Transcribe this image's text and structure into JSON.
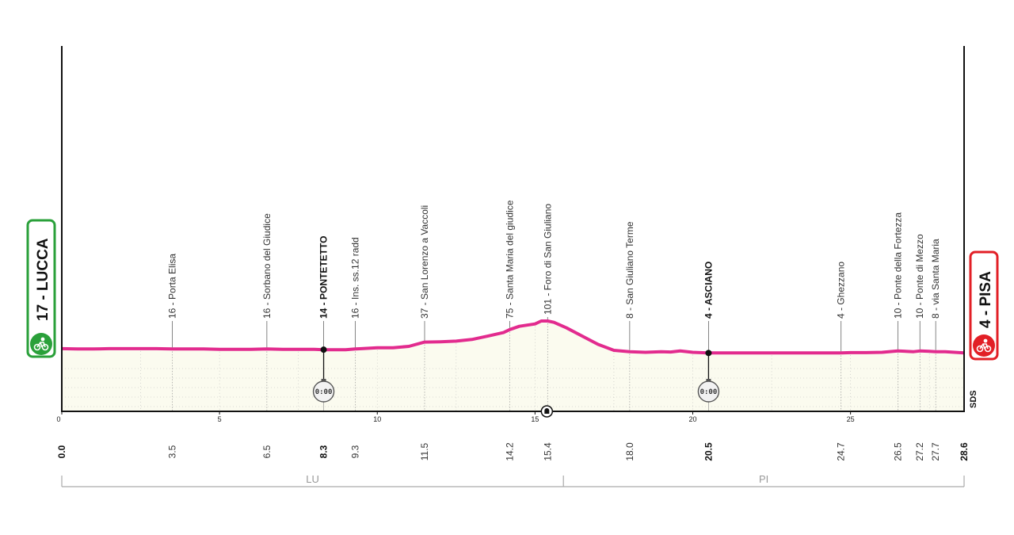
{
  "chart_data": {
    "type": "area",
    "total_km": 28.6,
    "x_ticks": [
      "0",
      "5",
      "10",
      "15",
      "20",
      "25"
    ],
    "start": {
      "label": "17 - LUCCA",
      "km_label": "0.0",
      "km": 0.0
    },
    "finish": {
      "label": "4 - PISA",
      "km_label": "28.6",
      "km": 28.6
    },
    "waypoints": [
      {
        "km": 3.5,
        "km_label": "3.5",
        "label": "16 - Porta Elisa",
        "bold": false
      },
      {
        "km": 6.5,
        "km_label": "6.5",
        "label": "16 - Sorbano del Giudice",
        "bold": false
      },
      {
        "km": 8.3,
        "km_label": "8.3",
        "label": "14 - PONTETETTO",
        "bold": true
      },
      {
        "km": 9.3,
        "km_label": "9.3",
        "label": "16 - Ins. ss.12 radd",
        "bold": false
      },
      {
        "km": 11.5,
        "km_label": "11.5",
        "label": "37 - San Lorenzo a Vaccoli",
        "bold": false
      },
      {
        "km": 14.2,
        "km_label": "14.2",
        "label": "75 - Santa Maria del giudice",
        "bold": false
      },
      {
        "km": 15.4,
        "km_label": "15.4",
        "label": "101 - Foro di San Giuliano",
        "bold": false
      },
      {
        "km": 18.0,
        "km_label": "18.0",
        "label": "8 - San Giuliano Terme",
        "bold": false
      },
      {
        "km": 20.5,
        "km_label": "20.5",
        "label": "4 - ASCIANO",
        "bold": true
      },
      {
        "km": 24.7,
        "km_label": "24.7",
        "label": "4 - Ghezzano",
        "bold": false
      },
      {
        "km": 26.5,
        "km_label": "26.5",
        "label": "10 - Ponte della Fortezza",
        "bold": false
      },
      {
        "km": 27.2,
        "km_label": "27.2",
        "label": "10 - Ponte di Mezzo",
        "bold": false
      },
      {
        "km": 27.7,
        "km_label": "27.7",
        "label": "8 - via Santa Maria",
        "bold": false
      }
    ],
    "intermediate_times": [
      {
        "km": 8.3,
        "label": "0:00"
      },
      {
        "km": 20.5,
        "label": "0:00"
      }
    ],
    "tunnel_km": 15.4,
    "provinces": [
      {
        "code": "LU",
        "from_km": 0,
        "to_km": 15.9
      },
      {
        "code": "PI",
        "from_km": 15.9,
        "to_km": 28.6
      }
    ],
    "profile": {
      "km": [
        0,
        0.5,
        1,
        1.5,
        2,
        2.5,
        3,
        3.5,
        4,
        4.5,
        5,
        5.5,
        6,
        6.5,
        7,
        7.5,
        8,
        8.3,
        8.5,
        9,
        9.3,
        9.5,
        10,
        10.5,
        11,
        11.5,
        12,
        12.5,
        13,
        13.5,
        14,
        14.2,
        14.5,
        15,
        15.2,
        15.4,
        15.6,
        16,
        16.5,
        17,
        17.5,
        18,
        18.5,
        19,
        19.3,
        19.6,
        20,
        20.5,
        21,
        22,
        23,
        24,
        24.7,
        25,
        25.5,
        26,
        26.5,
        27,
        27.2,
        27.5,
        27.7,
        28,
        28.6
      ],
      "elevation": [
        17,
        16,
        16,
        17,
        17,
        17,
        17,
        16,
        16,
        16,
        15,
        15,
        15,
        16,
        15,
        15,
        15,
        14,
        14,
        14,
        16,
        17,
        20,
        20,
        24,
        37,
        38,
        40,
        45,
        55,
        66,
        75,
        85,
        92,
        101,
        101,
        97,
        80,
        55,
        30,
        12,
        8,
        6,
        8,
        7,
        10,
        6,
        4,
        4,
        4,
        4,
        4,
        4,
        5,
        5,
        6,
        10,
        8,
        10,
        9,
        8,
        8,
        4
      ]
    },
    "elevation_range": [
      0,
      400
    ],
    "logo_text": "SDS",
    "colors": {
      "profile": "#e22b8e",
      "fill": "#fbfbef",
      "start": "#2aa03a",
      "finish": "#e21f26"
    }
  }
}
